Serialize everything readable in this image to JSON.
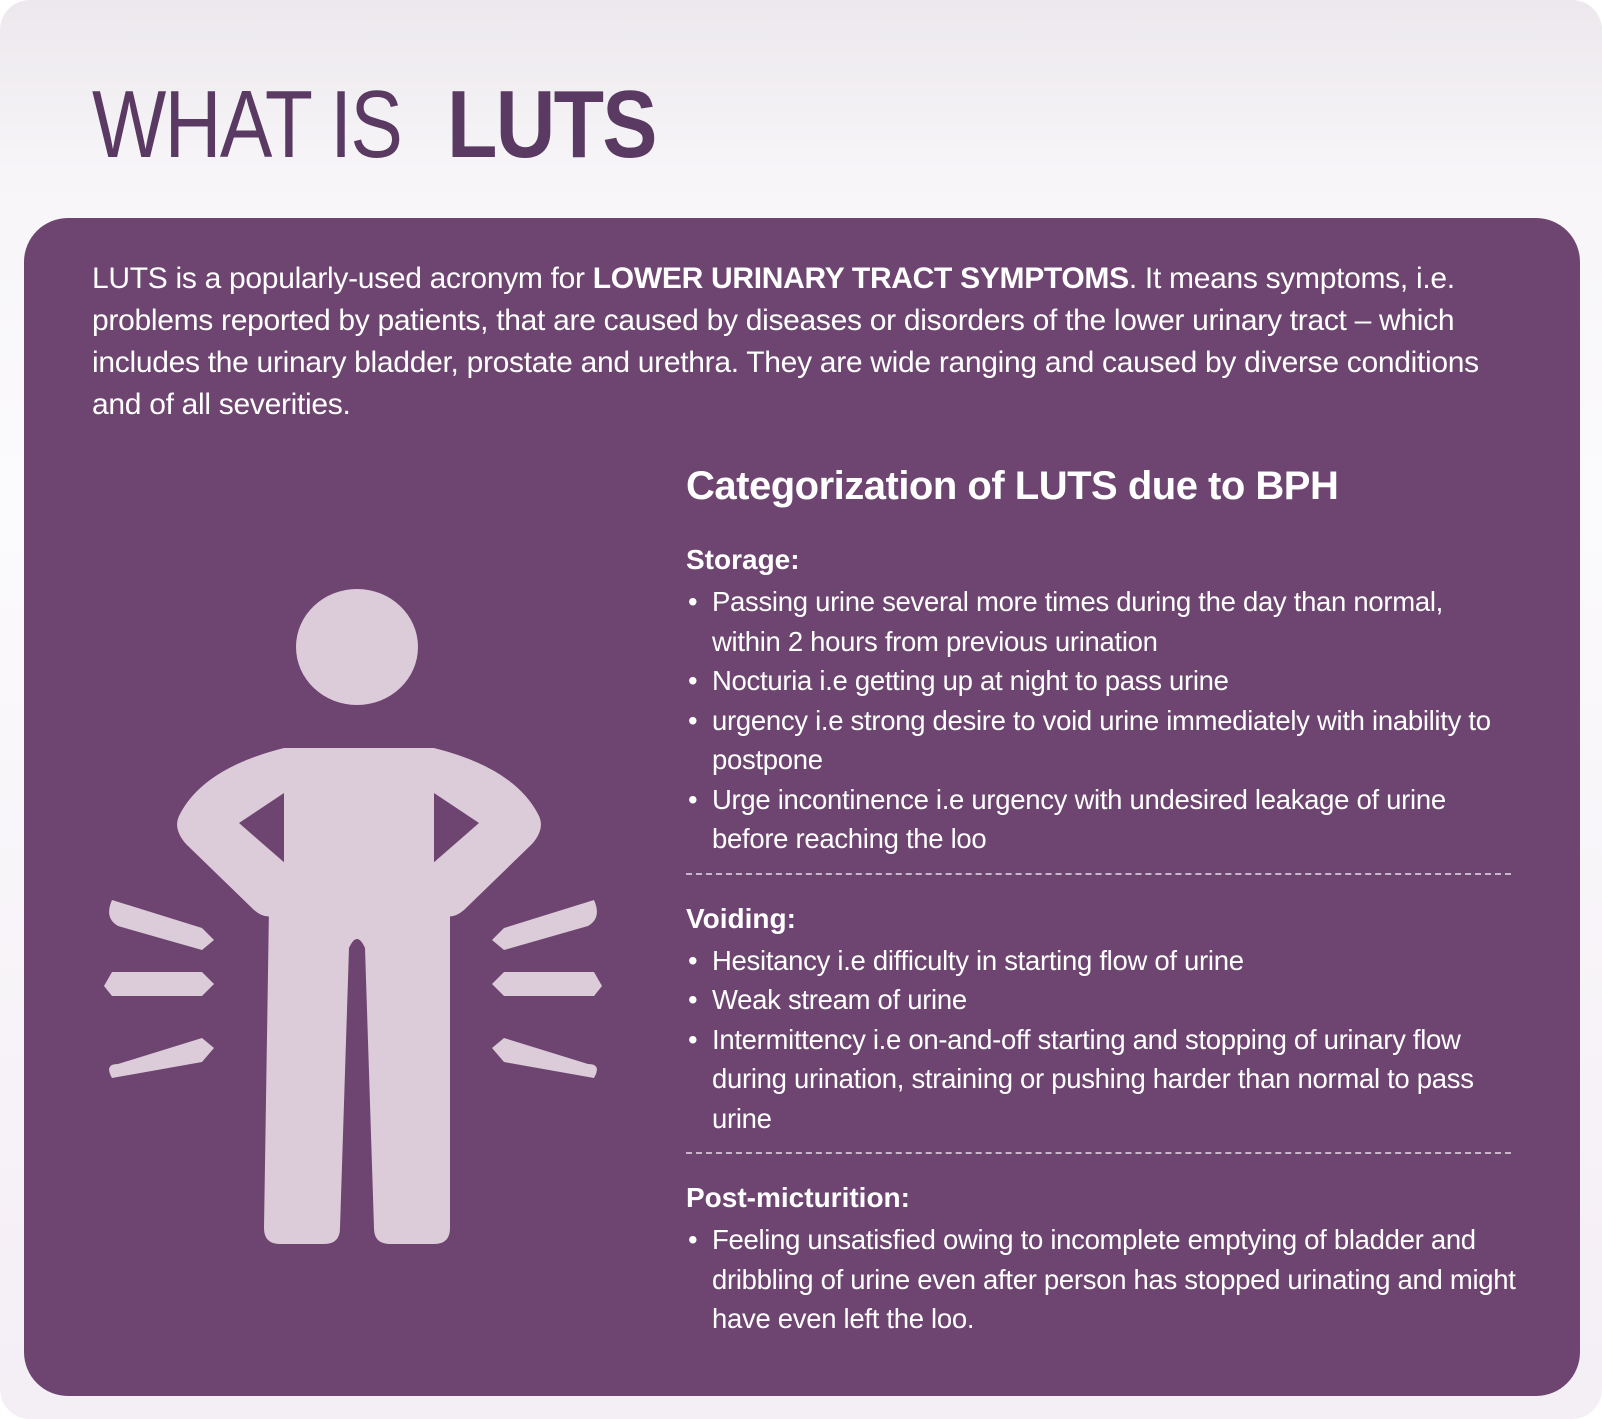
{
  "title": {
    "light": "WHAT IS",
    "bold": "LUTS"
  },
  "intro": {
    "before": "LUTS is a popularly-used acronym for ",
    "bold": "LOWER URINARY TRACT SYMPTOMS",
    "after": ". It means symptoms, i.e. problems reported by patients, that are caused by diseases or disorders of the lower urinary tract – which includes the urinary bladder, prostate and urethra. They are wide ranging and caused by diverse conditions and of all severities."
  },
  "figure": {
    "icon": "person-hands-on-hips-icon",
    "color": "#dccbd9"
  },
  "colors": {
    "panel": "#6d4570",
    "title": "#5a3a63"
  },
  "categorization": {
    "heading": "Categorization of LUTS due to BPH",
    "bullet": "•",
    "sections": [
      {
        "title": "Storage:",
        "items": [
          "Passing urine several more times during the day than normal, within 2 hours from previous urination",
          "Nocturia i.e getting up at night to pass urine",
          "urgency i.e strong desire to void urine immediately with inability to postpone",
          "Urge incontinence i.e urgency with undesired leakage of urine before reaching the loo"
        ]
      },
      {
        "title": "Voiding:",
        "items": [
          "Hesitancy i.e difficulty in starting flow of urine",
          "Weak stream of urine",
          "Intermittency i.e on-and-off starting and stopping of urinary flow during urination, straining or pushing harder than normal to pass urine"
        ]
      },
      {
        "title": "Post-micturition:",
        "items": [
          "Feeling unsatisfied owing to incomplete emptying of bladder and dribbling of urine even after person has stopped urinating and might have even left the loo."
        ]
      }
    ]
  }
}
